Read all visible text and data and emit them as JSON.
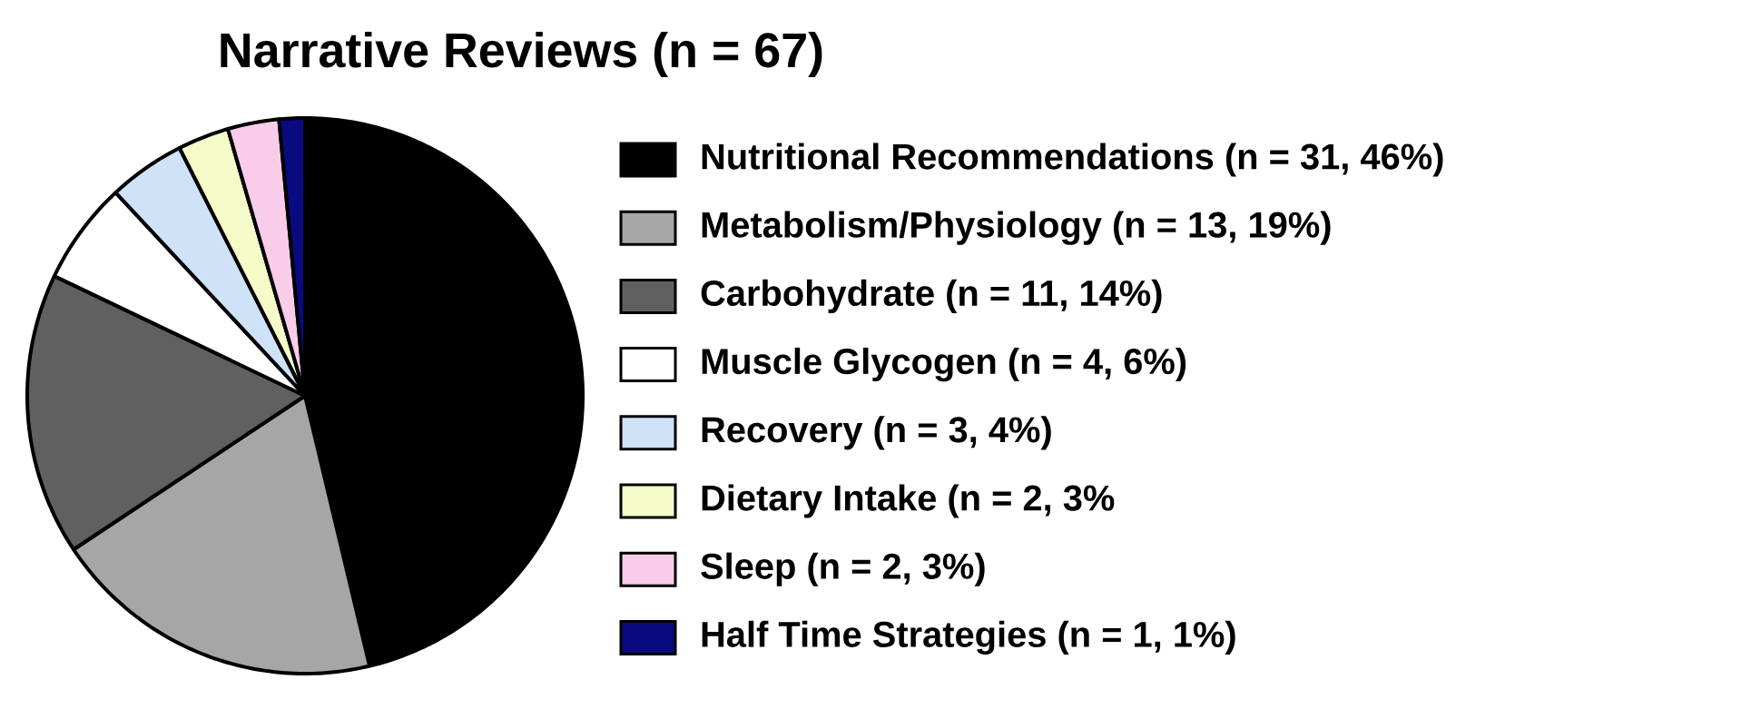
{
  "chart_data": {
    "type": "pie",
    "title": "Narrative Reviews (n = 67)",
    "categories": [
      "Nutritional Recommendations (n = 31, 46%)",
      "Metabolism/Physiology (n = 13, 19%)",
      "Carbohydrate (n = 11, 14%)",
      "Muscle Glycogen (n = 4, 6%)",
      "Recovery (n = 3, 4%)",
      "Dietary Intake (n = 2, 3%",
      "Sleep (n = 2, 3%)",
      "Half Time Strategies (n = 1, 1%)"
    ],
    "values": [
      31,
      13,
      11,
      4,
      3,
      2,
      2,
      1
    ],
    "colors": [
      "#000000",
      "#a6a6a6",
      "#606060",
      "#ffffff",
      "#cfe2f8",
      "#f5fbc8",
      "#f9cdea",
      "#0a0a80"
    ],
    "legend": "right"
  }
}
